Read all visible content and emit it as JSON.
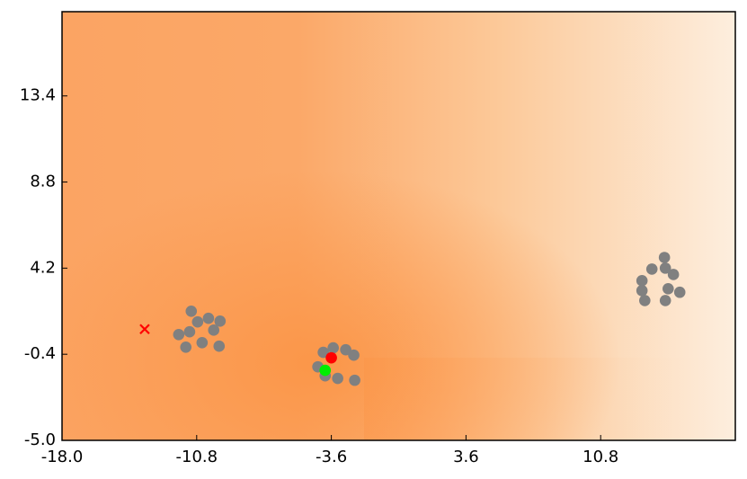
{
  "chart_data": {
    "type": "scatter",
    "xlim": [
      -18,
      18
    ],
    "ylim": [
      -5,
      17.9
    ],
    "xticks": [
      {
        "value": -18,
        "label": "-18.0"
      },
      -10.8,
      -3.6,
      3.6,
      10.8
    ],
    "yticks": [
      {
        "value": -5,
        "label": "-5.0"
      },
      -0.4,
      4.2,
      8.8,
      13.4
    ],
    "series": [
      {
        "color": "#808080",
        "marker": "circle",
        "x": [
          -11.09,
          -11.76,
          -11.18,
          -10.75,
          -10.17,
          -9.55,
          -9.89,
          -11.38,
          -10.51,
          -9.6,
          -4.03,
          -3.5,
          -2.83,
          -2.4,
          -4.32,
          -3.93,
          -3.26,
          -2.35,
          14.21,
          13.54,
          14.26,
          14.69,
          13.01,
          13.01,
          14.41,
          15.03,
          13.16,
          14.26
        ],
        "values": [
          1.9,
          0.65,
          0.8,
          1.33,
          1.52,
          1.37,
          0.89,
          -0.02,
          0.22,
          0.03,
          -0.3,
          -0.06,
          -0.16,
          -0.45,
          -1.07,
          -1.55,
          -1.69,
          -1.79,
          4.77,
          4.15,
          4.2,
          3.86,
          3.53,
          3.0,
          3.1,
          2.91,
          2.47,
          2.47
        ]
      },
      {
        "color": "#ff0000",
        "marker": "circle",
        "x": [
          -3.6
        ],
        "values": [
          -0.59
        ]
      },
      {
        "color": "#00ee00",
        "marker": "circle",
        "x": [
          -3.93
        ],
        "values": [
          -1.26
        ]
      },
      {
        "color": "#ff0000",
        "marker": "x",
        "x": [
          -13.58
        ],
        "values": [
          0.94
        ]
      }
    ]
  }
}
